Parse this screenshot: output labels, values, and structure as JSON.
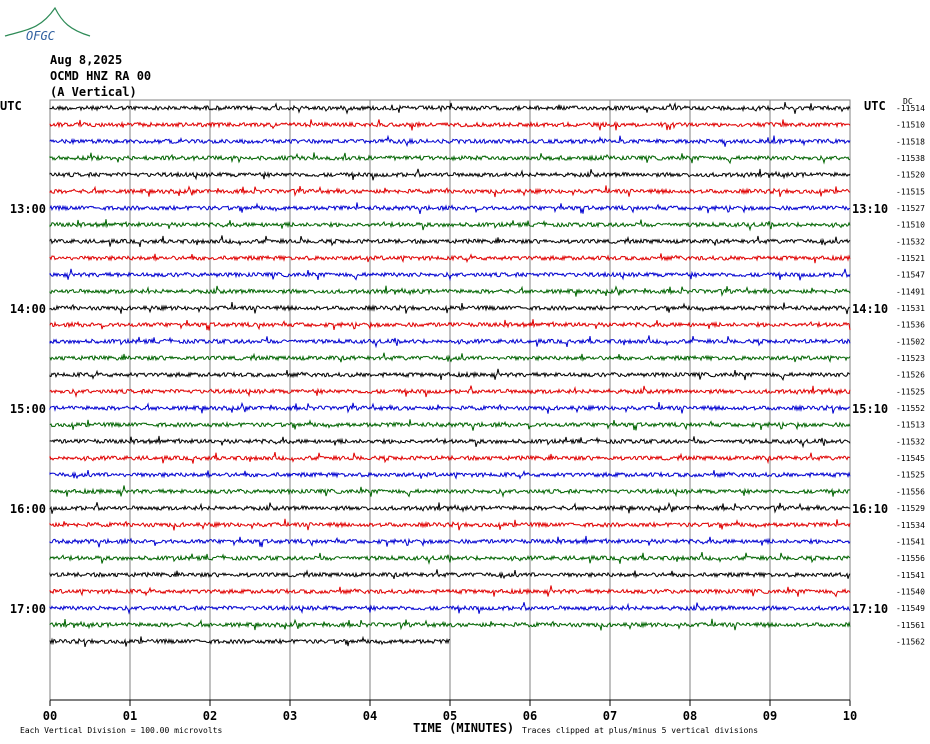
{
  "logo": "OFGC",
  "header": {
    "date": "Aug 8,2025",
    "station": "OCMD HNZ RA 00",
    "component": "(A Vertical)"
  },
  "left_labels": {
    "top": "UTC",
    "hours": [
      "13:00",
      "14:00",
      "15:00",
      "16:00",
      "17:00"
    ]
  },
  "right_labels": {
    "top": "UTC",
    "dc": "DC",
    "hours": [
      "13:10",
      "14:10",
      "15:10",
      "16:10",
      "17:10"
    ]
  },
  "dc_offsets": [
    "-11514",
    "-11510",
    "-11518",
    "-11538",
    "-11520",
    "-11515",
    "-11527",
    "-11510",
    "-11532",
    "-11521",
    "-11547",
    "-11491",
    "-11531",
    "-11536",
    "-11502",
    "-11523",
    "-11526",
    "-11525",
    "-11552",
    "-11513",
    "-11532",
    "-11545",
    "-11525",
    "-11556",
    "-11529",
    "-11534",
    "-11541",
    "-11556",
    "-11541",
    "-11540",
    "-11549",
    "-11561",
    "-11562"
  ],
  "trace_colors": [
    "#000000",
    "#e00000",
    "#0000d0",
    "#006400"
  ],
  "x_ticks": [
    "00",
    "01",
    "02",
    "03",
    "04",
    "05",
    "06",
    "07",
    "08",
    "09",
    "10"
  ],
  "footer": {
    "scale": "Each Vertical Division =  100.00 microvolts",
    "x_label": "TIME (MINUTES)",
    "clip_note": "Traces clipped at plus/minus 5 vertical divisions"
  }
}
